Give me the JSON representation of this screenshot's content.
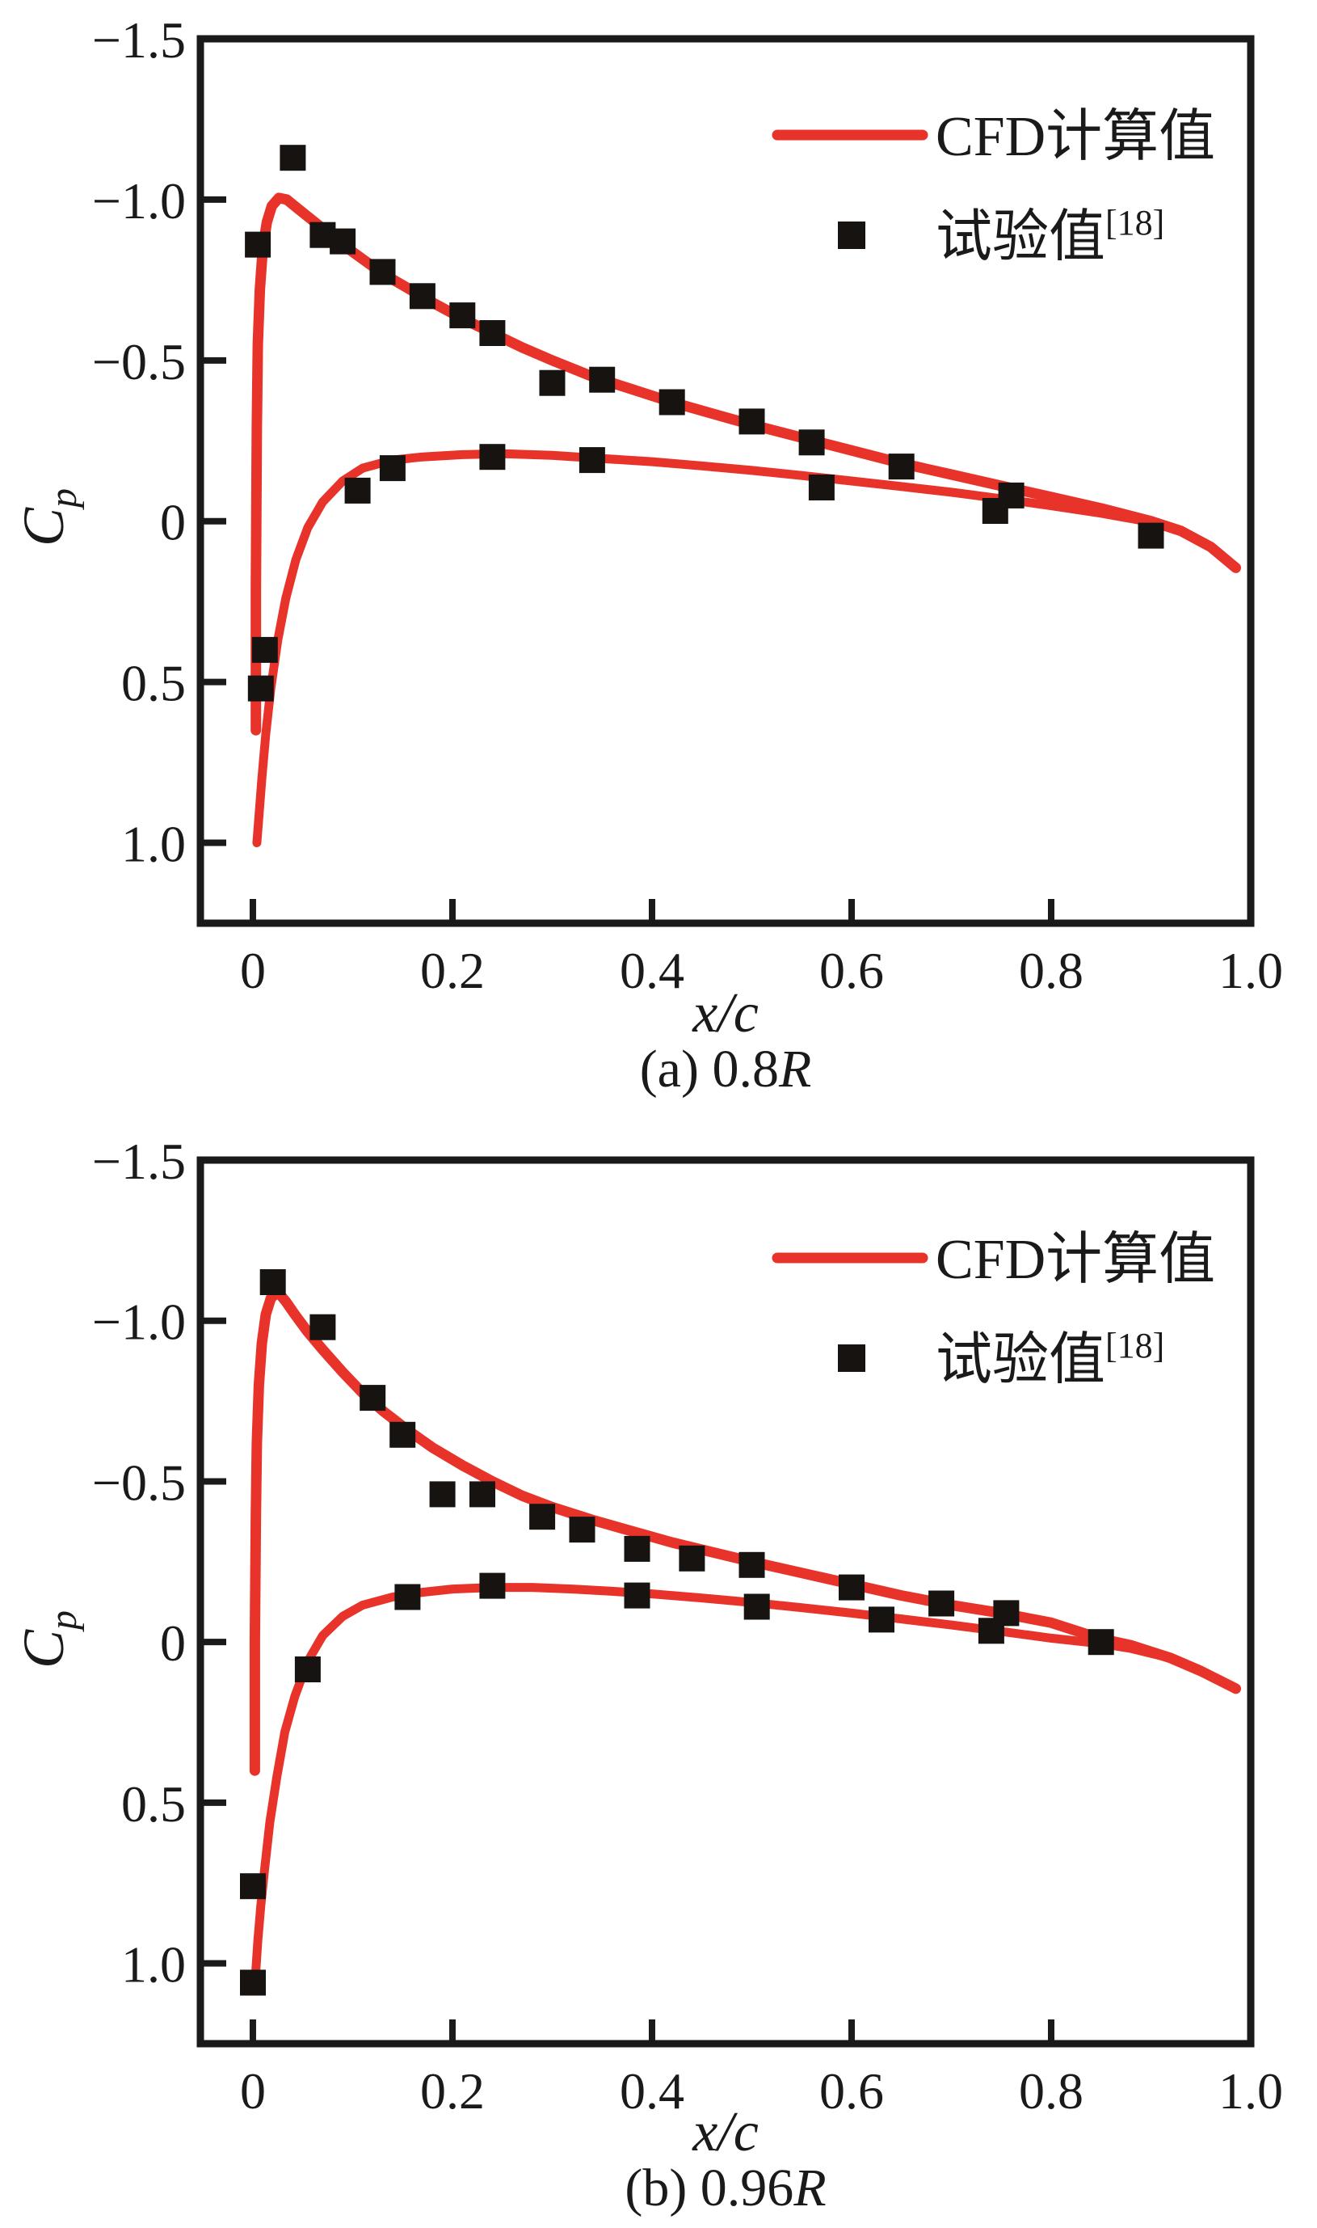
{
  "chart_data": {
    "type": "line",
    "description": "Pressure coefficient distribution comparison between CFD computation and experiment at two blade radial stations",
    "axes": {
      "x_min": -0.0526,
      "x_max": 1.0,
      "cp_top": -1.5,
      "cp_bottom": 1.25,
      "y_inverted": true,
      "grid": false,
      "legend_position": "top-right-inside"
    },
    "charts": [
      {
        "id": "a",
        "caption_prefix": "(a) 0.8",
        "caption_italic": "R",
        "xlabel": "x/c",
        "ylabel_main": "C",
        "ylabel_sub": "p",
        "legend": [
          {
            "label": "CFD计算值",
            "type": "line"
          },
          {
            "label": "试验值",
            "sup": "[18]",
            "type": "square"
          }
        ],
        "x_ticks": [
          {
            "v": 0,
            "label": "0"
          },
          {
            "v": 0.2,
            "label": "0.2"
          },
          {
            "v": 0.4,
            "label": "0.4"
          },
          {
            "v": 0.6,
            "label": "0.6"
          },
          {
            "v": 0.8,
            "label": "0.8"
          },
          {
            "v": 1.0,
            "label": "1.0"
          }
        ],
        "y_ticks": [
          {
            "v": -1.5,
            "label": "−1.5"
          },
          {
            "v": -1.0,
            "label": "−1.0"
          },
          {
            "v": -0.5,
            "label": "−0.5"
          },
          {
            "v": 0,
            "label": "0"
          },
          {
            "v": 0.5,
            "label": "0.5"
          },
          {
            "v": 1.0,
            "label": "1.0"
          }
        ],
        "series": {
          "cfd_upper": [
            [
              0.003,
              0.65
            ],
            [
              0.003,
              0.2
            ],
            [
              0.004,
              -0.3
            ],
            [
              0.005,
              -0.55
            ],
            [
              0.007,
              -0.72
            ],
            [
              0.01,
              -0.85
            ],
            [
              0.014,
              -0.93
            ],
            [
              0.019,
              -0.98
            ],
            [
              0.026,
              -1.005
            ],
            [
              0.034,
              -1.0
            ],
            [
              0.044,
              -0.975
            ],
            [
              0.056,
              -0.945
            ],
            [
              0.07,
              -0.91
            ],
            [
              0.09,
              -0.86
            ],
            [
              0.11,
              -0.815
            ],
            [
              0.13,
              -0.77
            ],
            [
              0.155,
              -0.725
            ],
            [
              0.18,
              -0.68
            ],
            [
              0.21,
              -0.63
            ],
            [
              0.24,
              -0.585
            ],
            [
              0.27,
              -0.54
            ],
            [
              0.3,
              -0.5
            ],
            [
              0.34,
              -0.45
            ],
            [
              0.38,
              -0.41
            ],
            [
              0.42,
              -0.37
            ],
            [
              0.46,
              -0.335
            ],
            [
              0.5,
              -0.3
            ],
            [
              0.55,
              -0.26
            ],
            [
              0.6,
              -0.22
            ],
            [
              0.65,
              -0.18
            ],
            [
              0.7,
              -0.145
            ],
            [
              0.75,
              -0.11
            ],
            [
              0.8,
              -0.075
            ],
            [
              0.85,
              -0.04
            ],
            [
              0.9,
              0.0
            ],
            [
              0.93,
              0.03
            ],
            [
              0.96,
              0.08
            ],
            [
              0.985,
              0.145
            ]
          ],
          "cfd_lower": [
            [
              0.004,
              1.0
            ],
            [
              0.006,
              0.92
            ],
            [
              0.009,
              0.8
            ],
            [
              0.013,
              0.66
            ],
            [
              0.018,
              0.52
            ],
            [
              0.025,
              0.37
            ],
            [
              0.033,
              0.24
            ],
            [
              0.043,
              0.12
            ],
            [
              0.055,
              0.02
            ],
            [
              0.07,
              -0.06
            ],
            [
              0.09,
              -0.125
            ],
            [
              0.11,
              -0.165
            ],
            [
              0.14,
              -0.19
            ],
            [
              0.17,
              -0.2
            ],
            [
              0.21,
              -0.207
            ],
            [
              0.25,
              -0.21
            ],
            [
              0.3,
              -0.205
            ],
            [
              0.35,
              -0.195
            ],
            [
              0.4,
              -0.185
            ],
            [
              0.45,
              -0.172
            ],
            [
              0.5,
              -0.158
            ],
            [
              0.55,
              -0.142
            ],
            [
              0.6,
              -0.125
            ],
            [
              0.65,
              -0.108
            ],
            [
              0.7,
              -0.09
            ],
            [
              0.75,
              -0.07
            ],
            [
              0.8,
              -0.048
            ],
            [
              0.85,
              -0.025
            ],
            [
              0.9,
              0.003
            ],
            [
              0.93,
              0.03
            ],
            [
              0.96,
              0.08
            ],
            [
              0.985,
              0.145
            ]
          ],
          "experiment": [
            [
              0.005,
              -0.86
            ],
            [
              0.04,
              -1.13
            ],
            [
              0.07,
              -0.89
            ],
            [
              0.09,
              -0.87
            ],
            [
              0.13,
              -0.775
            ],
            [
              0.17,
              -0.7
            ],
            [
              0.21,
              -0.64
            ],
            [
              0.24,
              -0.585
            ],
            [
              0.3,
              -0.43
            ],
            [
              0.35,
              -0.44
            ],
            [
              0.42,
              -0.37
            ],
            [
              0.5,
              -0.31
            ],
            [
              0.56,
              -0.245
            ],
            [
              0.65,
              -0.17
            ],
            [
              0.76,
              -0.08
            ],
            [
              0.9,
              0.045
            ],
            [
              0.008,
              0.52
            ],
            [
              0.012,
              0.4
            ],
            [
              0.105,
              -0.095
            ],
            [
              0.14,
              -0.165
            ],
            [
              0.24,
              -0.2
            ],
            [
              0.34,
              -0.19
            ],
            [
              0.57,
              -0.105
            ],
            [
              0.744,
              -0.032
            ]
          ]
        }
      },
      {
        "id": "b",
        "caption_prefix": "(b) 0.96",
        "caption_italic": "R",
        "xlabel": "x/c",
        "ylabel_main": "C",
        "ylabel_sub": "p",
        "legend": [
          {
            "label": "CFD计算值",
            "type": "line"
          },
          {
            "label": "试验值",
            "sup": "[18]",
            "type": "square"
          }
        ],
        "x_ticks": [
          {
            "v": 0,
            "label": "0"
          },
          {
            "v": 0.2,
            "label": "0.2"
          },
          {
            "v": 0.4,
            "label": "0.4"
          },
          {
            "v": 0.6,
            "label": "0.6"
          },
          {
            "v": 0.8,
            "label": "0.8"
          },
          {
            "v": 1.0,
            "label": "1.0"
          }
        ],
        "y_ticks": [
          {
            "v": -1.5,
            "label": "−1.5"
          },
          {
            "v": -1.0,
            "label": "−1.0"
          },
          {
            "v": -0.5,
            "label": "−0.5"
          },
          {
            "v": 0,
            "label": "0"
          },
          {
            "v": 0.5,
            "label": "0.5"
          },
          {
            "v": 1.0,
            "label": "1.0"
          }
        ],
        "series": {
          "cfd_upper": [
            [
              0.002,
              0.4
            ],
            [
              0.002,
              0.0
            ],
            [
              0.003,
              -0.4
            ],
            [
              0.004,
              -0.62
            ],
            [
              0.006,
              -0.8
            ],
            [
              0.009,
              -0.93
            ],
            [
              0.013,
              -1.02
            ],
            [
              0.018,
              -1.07
            ],
            [
              0.025,
              -1.09
            ],
            [
              0.033,
              -1.06
            ],
            [
              0.042,
              -1.02
            ],
            [
              0.055,
              -0.965
            ],
            [
              0.07,
              -0.91
            ],
            [
              0.09,
              -0.84
            ],
            [
              0.11,
              -0.775
            ],
            [
              0.13,
              -0.72
            ],
            [
              0.155,
              -0.66
            ],
            [
              0.18,
              -0.605
            ],
            [
              0.21,
              -0.55
            ],
            [
              0.24,
              -0.5
            ],
            [
              0.27,
              -0.455
            ],
            [
              0.3,
              -0.42
            ],
            [
              0.34,
              -0.38
            ],
            [
              0.38,
              -0.345
            ],
            [
              0.42,
              -0.31
            ],
            [
              0.46,
              -0.28
            ],
            [
              0.5,
              -0.25
            ],
            [
              0.55,
              -0.215
            ],
            [
              0.6,
              -0.18
            ],
            [
              0.65,
              -0.145
            ],
            [
              0.7,
              -0.115
            ],
            [
              0.75,
              -0.09
            ],
            [
              0.8,
              -0.06
            ],
            [
              0.85,
              -0.01
            ],
            [
              0.88,
              0.01
            ],
            [
              0.92,
              0.05
            ],
            [
              0.95,
              0.09
            ],
            [
              0.985,
              0.145
            ]
          ],
          "cfd_lower": [
            [
              0.003,
              1.02
            ],
            [
              0.005,
              0.93
            ],
            [
              0.008,
              0.82
            ],
            [
              0.012,
              0.7
            ],
            [
              0.017,
              0.56
            ],
            [
              0.024,
              0.42
            ],
            [
              0.032,
              0.28
            ],
            [
              0.042,
              0.17
            ],
            [
              0.055,
              0.06
            ],
            [
              0.07,
              -0.02
            ],
            [
              0.09,
              -0.08
            ],
            [
              0.11,
              -0.115
            ],
            [
              0.14,
              -0.14
            ],
            [
              0.17,
              -0.155
            ],
            [
              0.2,
              -0.165
            ],
            [
              0.24,
              -0.17
            ],
            [
              0.28,
              -0.17
            ],
            [
              0.32,
              -0.165
            ],
            [
              0.36,
              -0.158
            ],
            [
              0.4,
              -0.15
            ],
            [
              0.45,
              -0.137
            ],
            [
              0.5,
              -0.123
            ],
            [
              0.55,
              -0.107
            ],
            [
              0.6,
              -0.09
            ],
            [
              0.65,
              -0.072
            ],
            [
              0.7,
              -0.053
            ],
            [
              0.75,
              -0.033
            ],
            [
              0.8,
              -0.012
            ],
            [
              0.85,
              0.005
            ],
            [
              0.88,
              0.02
            ],
            [
              0.92,
              0.05
            ],
            [
              0.95,
              0.09
            ],
            [
              0.985,
              0.145
            ]
          ],
          "experiment": [
            [
              0.02,
              -1.12
            ],
            [
              0.07,
              -0.98
            ],
            [
              0.12,
              -0.76
            ],
            [
              0.15,
              -0.645
            ],
            [
              0.19,
              -0.46
            ],
            [
              0.23,
              -0.46
            ],
            [
              0.29,
              -0.39
            ],
            [
              0.33,
              -0.35
            ],
            [
              0.385,
              -0.29
            ],
            [
              0.44,
              -0.26
            ],
            [
              0.5,
              -0.24
            ],
            [
              0.6,
              -0.17
            ],
            [
              0.69,
              -0.12
            ],
            [
              0.755,
              -0.09
            ],
            [
              0.85,
              0.0
            ],
            [
              0.0,
              0.76
            ],
            [
              0.0,
              1.06
            ],
            [
              0.055,
              0.085
            ],
            [
              0.155,
              -0.14
            ],
            [
              0.24,
              -0.175
            ],
            [
              0.385,
              -0.145
            ],
            [
              0.505,
              -0.11
            ],
            [
              0.63,
              -0.07
            ],
            [
              0.74,
              -0.035
            ]
          ]
        }
      }
    ],
    "colors": {
      "cfd_line": "#e8332a",
      "marker": "#171310",
      "axis": "#1a1a1a",
      "background": "#ffffff"
    }
  }
}
